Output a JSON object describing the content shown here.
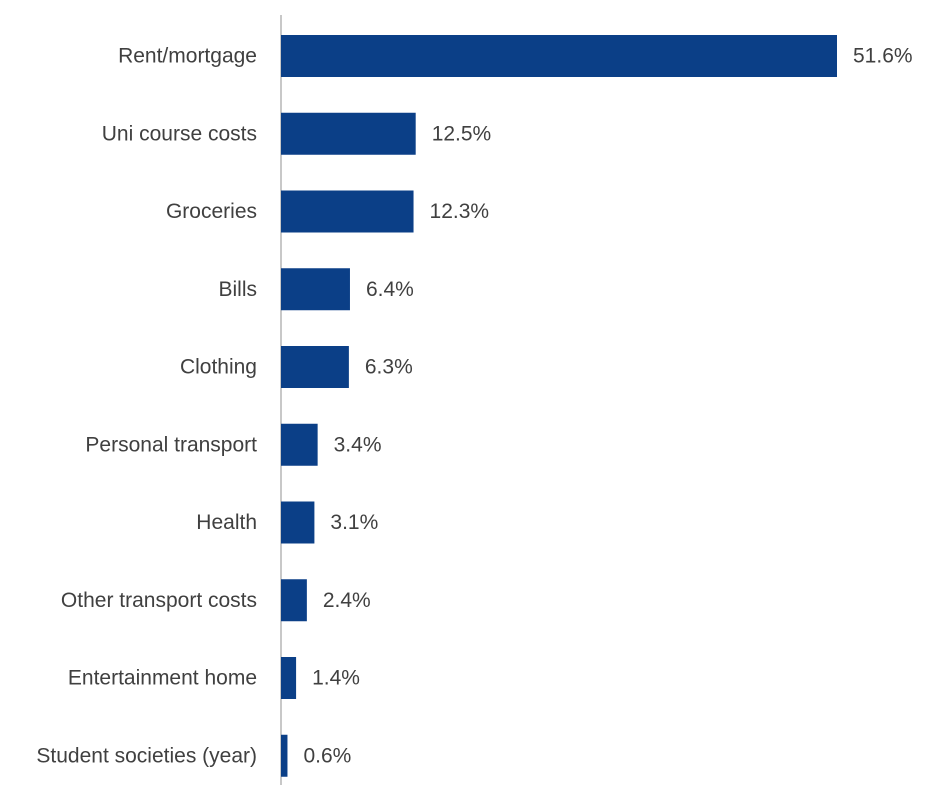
{
  "chart_data": {
    "type": "bar",
    "orientation": "horizontal",
    "categories": [
      "Rent/mortgage",
      "Uni course costs",
      "Groceries",
      "Bills",
      "Clothing",
      "Personal transport",
      "Health",
      "Other transport costs",
      "Entertainment home",
      "Student societies (year)"
    ],
    "values": [
      51.6,
      12.5,
      12.3,
      6.4,
      6.3,
      3.4,
      3.1,
      2.4,
      1.4,
      0.6
    ],
    "value_labels": [
      "51.6%",
      "12.5%",
      "12.3%",
      "6.4%",
      "6.3%",
      "3.4%",
      "3.1%",
      "2.4%",
      "1.4%",
      "0.6%"
    ],
    "value_unit": "%",
    "xlim": [
      0,
      51.6
    ],
    "grid": false,
    "legend": "none",
    "bar_color": "#0B3F87",
    "axis_color": "#C8C8C8",
    "text_color": "#404040"
  }
}
